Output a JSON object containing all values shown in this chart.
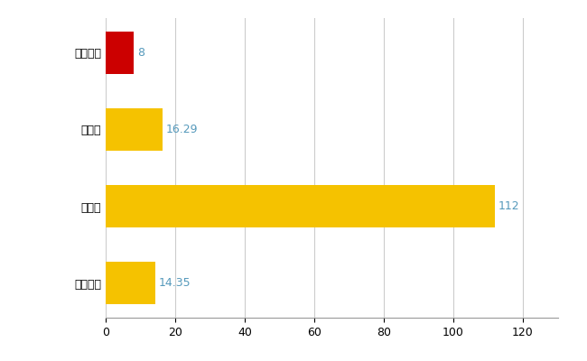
{
  "categories": [
    "全国平均",
    "県最大",
    "県平均",
    "瀯戸内市"
  ],
  "values": [
    14.35,
    112,
    16.29,
    8
  ],
  "bar_colors": [
    "#F5C200",
    "#F5C200",
    "#F5C200",
    "#CC0000"
  ],
  "labels": [
    "14.35",
    "112",
    "16.29",
    "8"
  ],
  "xlim": [
    0,
    130
  ],
  "xticks": [
    0,
    20,
    40,
    60,
    80,
    100,
    120
  ],
  "background_color": "#FFFFFF",
  "grid_color": "#CCCCCC",
  "bar_height": 0.55,
  "figsize": [
    6.5,
    4.0
  ],
  "dpi": 100,
  "label_fontsize": 9,
  "tick_fontsize": 9,
  "label_color": "#5599BB"
}
